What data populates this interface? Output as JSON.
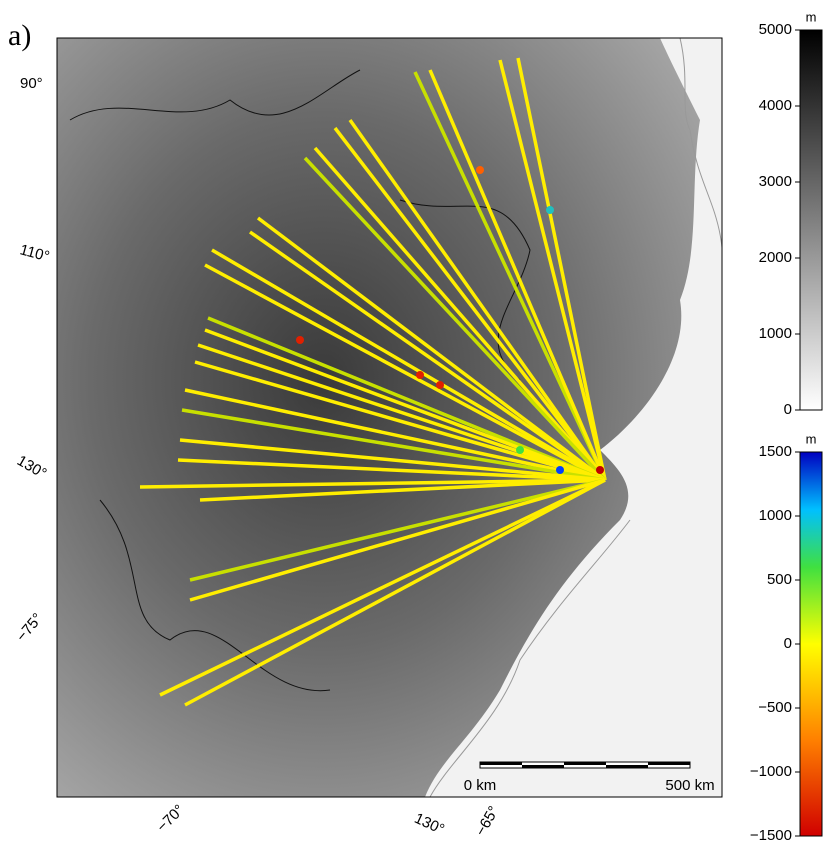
{
  "panel_label": "a)",
  "map": {
    "graticule_labels": [
      "90°",
      "110°",
      "130°",
      "−75°",
      "−70°",
      "130°",
      "−65°"
    ]
  },
  "colorbars": [
    {
      "unit": "m",
      "range": [
        0,
        5000
      ],
      "ticks": [
        0,
        1000,
        2000,
        3000,
        4000,
        5000
      ]
    },
    {
      "unit": "m",
      "range": [
        -1500,
        1500
      ],
      "ticks": [
        {
          "value": -1500,
          "label": "−1500"
        },
        {
          "value": -1000,
          "label": "−1000"
        },
        {
          "value": -500,
          "label": "−500"
        },
        0,
        500,
        1000,
        1500
      ]
    }
  ],
  "scale_bar": {
    "labels": [
      "0 km",
      "500 km"
    ]
  }
}
